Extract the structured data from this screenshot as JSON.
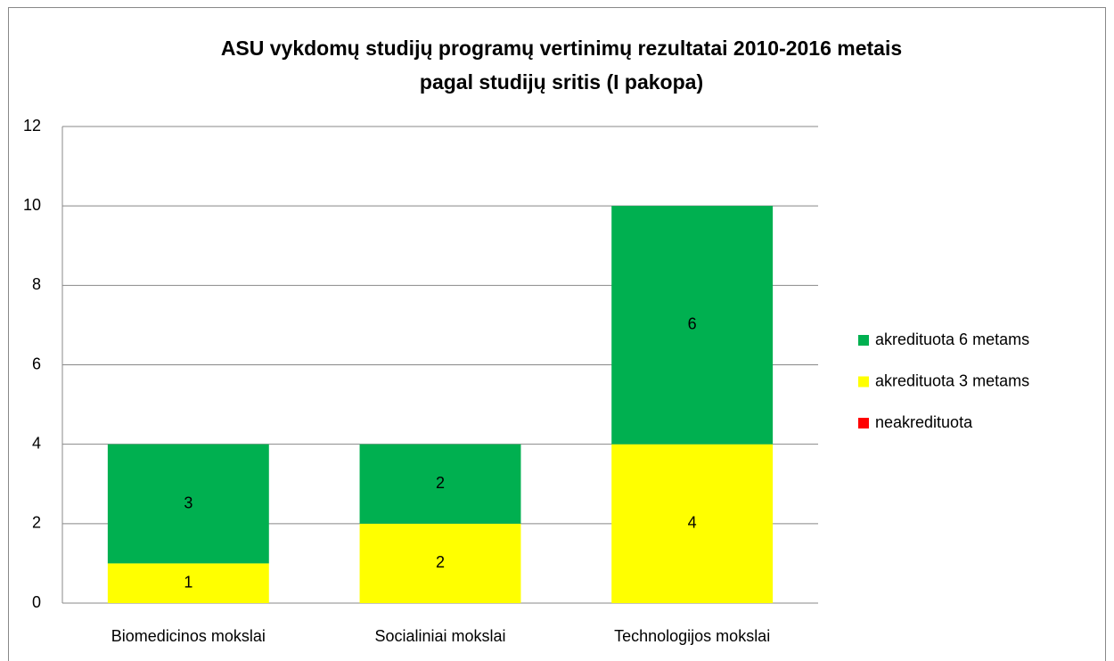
{
  "chart_data": {
    "type": "stacked_bar",
    "title": [
      "ASU vykdomų studijų programų vertinimų rezultatai 2010-2016 metais",
      "pagal studijų sritis (I pakopa)"
    ],
    "categories": [
      "Biomedicinos mokslai",
      "Socialiniai mokslai",
      "Technologijos mokslai"
    ],
    "series": [
      {
        "name": "neakredituota",
        "color": "#ff0000",
        "values": [
          0,
          0,
          0
        ]
      },
      {
        "name": "akredituota 3 metams",
        "color": "#ffff00",
        "values": [
          1,
          2,
          4
        ]
      },
      {
        "name": "akredituota 6 metams",
        "color": "#00b050",
        "values": [
          3,
          2,
          6
        ]
      }
    ],
    "ylim": [
      0,
      12
    ],
    "yticks": [
      0,
      2,
      4,
      6,
      8,
      10,
      12
    ],
    "grid": true,
    "legend": "right"
  }
}
